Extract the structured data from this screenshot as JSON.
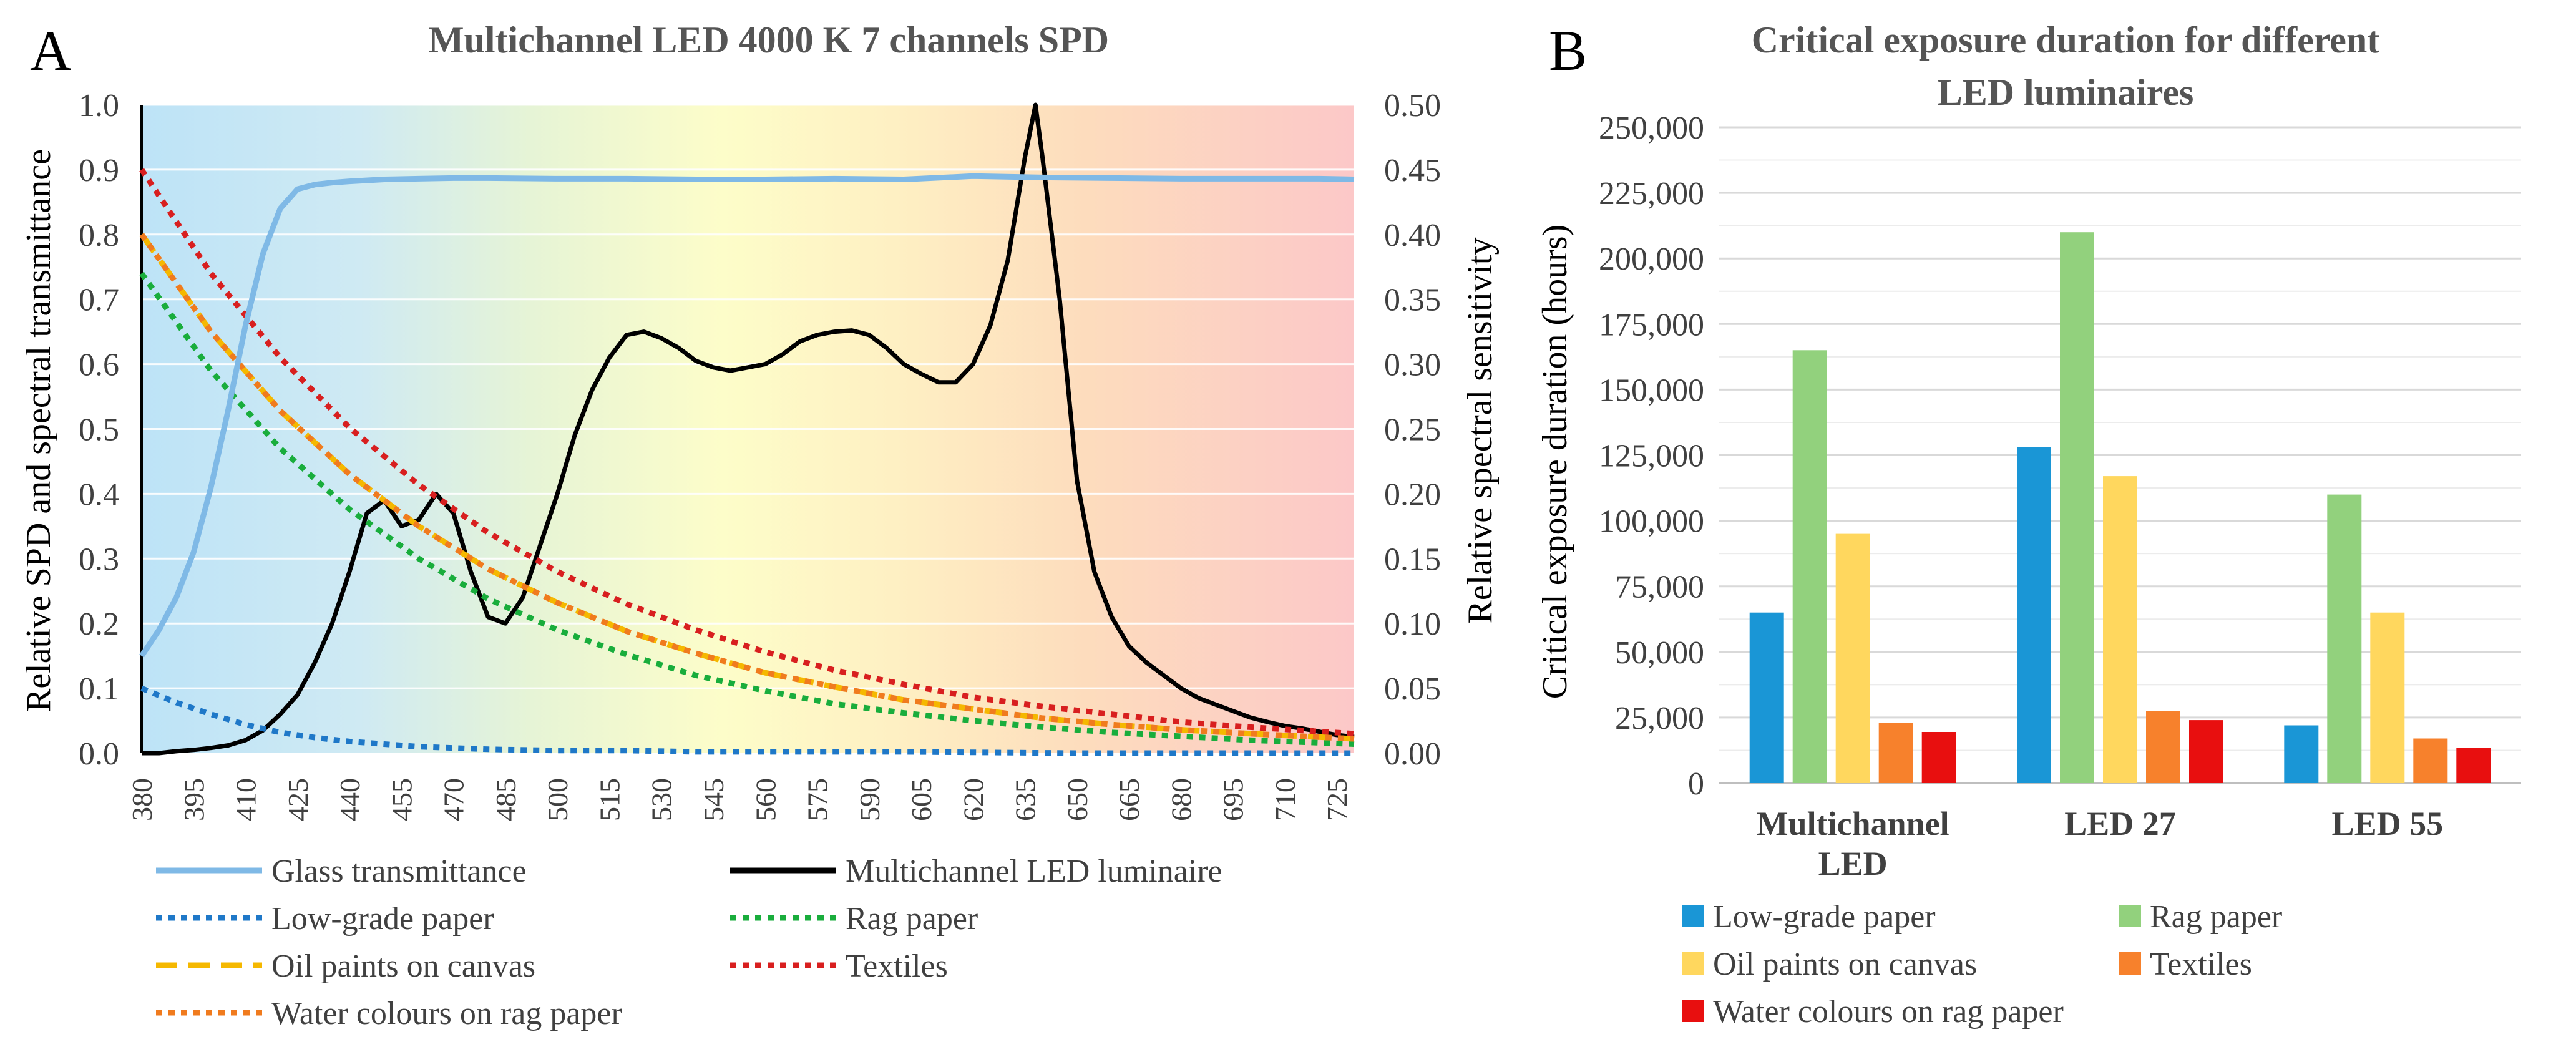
{
  "panels": {
    "a_letter": "A",
    "b_letter": "B"
  },
  "colors": {
    "glass": "#7fb9e6",
    "led": "#000000",
    "low": "#1f78c8",
    "rag": "#19ad3c",
    "oil": "#f5b800",
    "textiles": "#d81f1f",
    "water": "#f07b1e",
    "bar_low": "#1a96d6",
    "bar_rag": "#92d17d",
    "bar_oil": "#ffd75e",
    "bar_textiles": "#f7812c",
    "bar_water": "#e80f0f",
    "title": "#555555",
    "grid": "#d9d9d9"
  },
  "chart_data": [
    {
      "type": "line",
      "title": "Multichannel LED 4000 K 7 channels SPD",
      "xlabel": "",
      "ylabel": "Relative SPD and spectral transmittance",
      "y2label": "Relative spectral sensitivity",
      "xlim": [
        380,
        730
      ],
      "ylim": [
        0,
        1.0
      ],
      "y2lim": [
        0,
        0.5
      ],
      "x_ticks": [
        "380",
        "395",
        "410",
        "425",
        "440",
        "455",
        "470",
        "485",
        "500",
        "515",
        "530",
        "545",
        "560",
        "575",
        "590",
        "605",
        "620",
        "635",
        "650",
        "665",
        "680",
        "695",
        "710",
        "725"
      ],
      "y_ticks": [
        "0.0",
        "0.1",
        "0.2",
        "0.3",
        "0.4",
        "0.5",
        "0.6",
        "0.7",
        "0.8",
        "0.9",
        "1.0"
      ],
      "y2_ticks": [
        "0.00",
        "0.05",
        "0.10",
        "0.15",
        "0.20",
        "0.25",
        "0.30",
        "0.35",
        "0.40",
        "0.45",
        "0.50"
      ],
      "background_gradient": "visible spectrum (blue to red)",
      "series": [
        {
          "name": "Glass transmittance",
          "key": "glass",
          "axis": "left",
          "style": "solid",
          "x": [
            380,
            385,
            390,
            395,
            400,
            405,
            410,
            415,
            420,
            425,
            430,
            435,
            440,
            450,
            460,
            470,
            480,
            500,
            520,
            540,
            560,
            580,
            600,
            620,
            640,
            660,
            680,
            700,
            720,
            730
          ],
          "y": [
            0.15,
            0.19,
            0.24,
            0.31,
            0.41,
            0.53,
            0.66,
            0.77,
            0.84,
            0.87,
            0.877,
            0.88,
            0.882,
            0.885,
            0.886,
            0.887,
            0.887,
            0.886,
            0.886,
            0.885,
            0.885,
            0.886,
            0.885,
            0.89,
            0.888,
            0.887,
            0.886,
            0.886,
            0.886,
            0.885
          ]
        },
        {
          "name": "Multichannel LED luminaire",
          "key": "led",
          "axis": "left",
          "style": "solid",
          "x": [
            380,
            385,
            390,
            395,
            400,
            405,
            410,
            415,
            420,
            425,
            430,
            435,
            440,
            445,
            450,
            455,
            460,
            465,
            470,
            475,
            480,
            485,
            490,
            495,
            500,
            505,
            510,
            515,
            520,
            525,
            530,
            535,
            540,
            545,
            550,
            555,
            560,
            565,
            570,
            575,
            580,
            585,
            590,
            595,
            600,
            605,
            610,
            615,
            620,
            625,
            630,
            635,
            638,
            640,
            645,
            650,
            655,
            660,
            665,
            670,
            675,
            680,
            685,
            690,
            695,
            700,
            705,
            710,
            715,
            720,
            725,
            730
          ],
          "y": [
            0.0,
            0.0,
            0.003,
            0.005,
            0.008,
            0.012,
            0.02,
            0.035,
            0.06,
            0.09,
            0.14,
            0.2,
            0.28,
            0.37,
            0.39,
            0.35,
            0.36,
            0.4,
            0.37,
            0.28,
            0.21,
            0.2,
            0.24,
            0.32,
            0.4,
            0.49,
            0.56,
            0.61,
            0.645,
            0.65,
            0.64,
            0.625,
            0.605,
            0.595,
            0.59,
            0.595,
            0.6,
            0.615,
            0.635,
            0.645,
            0.65,
            0.652,
            0.645,
            0.625,
            0.6,
            0.585,
            0.572,
            0.572,
            0.6,
            0.66,
            0.76,
            0.92,
            1.0,
            0.92,
            0.7,
            0.42,
            0.28,
            0.21,
            0.165,
            0.14,
            0.12,
            0.1,
            0.085,
            0.075,
            0.065,
            0.055,
            0.048,
            0.042,
            0.038,
            0.033,
            0.028,
            0.025
          ]
        },
        {
          "name": "Low-grade paper",
          "key": "low",
          "axis": "right",
          "style": "dotted",
          "x": [
            380,
            390,
            400,
            410,
            420,
            430,
            440,
            450,
            460,
            470,
            480,
            500,
            520,
            540,
            560,
            600,
            650,
            700,
            730
          ],
          "y": [
            0.05,
            0.039,
            0.03,
            0.022,
            0.016,
            0.012,
            0.009,
            0.007,
            0.005,
            0.004,
            0.003,
            0.002,
            0.002,
            0.001,
            0.001,
            0.001,
            0.0,
            0.0,
            0.0
          ]
        },
        {
          "name": "Rag paper",
          "key": "rag",
          "axis": "right",
          "style": "dotted",
          "x": [
            380,
            400,
            420,
            440,
            460,
            480,
            500,
            520,
            540,
            560,
            580,
            600,
            620,
            640,
            660,
            680,
            700,
            730
          ],
          "y": [
            0.37,
            0.295,
            0.235,
            0.188,
            0.15,
            0.119,
            0.095,
            0.076,
            0.06,
            0.048,
            0.038,
            0.031,
            0.025,
            0.02,
            0.016,
            0.013,
            0.01,
            0.007
          ]
        },
        {
          "name": "Oil paints on canvas",
          "key": "oil",
          "axis": "right",
          "style": "dashed",
          "x": [
            380,
            400,
            420,
            440,
            460,
            480,
            500,
            520,
            540,
            560,
            580,
            600,
            620,
            640,
            660,
            680,
            700,
            730
          ],
          "y": [
            0.4,
            0.325,
            0.264,
            0.215,
            0.175,
            0.142,
            0.116,
            0.094,
            0.077,
            0.062,
            0.051,
            0.041,
            0.034,
            0.027,
            0.022,
            0.018,
            0.015,
            0.011
          ]
        },
        {
          "name": "Textiles",
          "key": "textiles",
          "axis": "right",
          "style": "dotted",
          "x": [
            380,
            400,
            420,
            440,
            460,
            480,
            500,
            520,
            540,
            560,
            580,
            600,
            620,
            640,
            660,
            680,
            700,
            730
          ],
          "y": [
            0.45,
            0.37,
            0.305,
            0.251,
            0.207,
            0.17,
            0.14,
            0.115,
            0.095,
            0.078,
            0.064,
            0.053,
            0.043,
            0.036,
            0.03,
            0.024,
            0.02,
            0.015
          ]
        },
        {
          "name": "Water colours on rag paper",
          "key": "water",
          "axis": "right",
          "style": "dotted",
          "x": [
            380,
            400,
            420,
            440,
            460,
            480,
            500,
            520,
            540,
            560,
            580,
            600,
            620,
            640,
            660,
            680,
            700,
            730
          ],
          "y": [
            0.4,
            0.325,
            0.264,
            0.215,
            0.175,
            0.142,
            0.116,
            0.094,
            0.077,
            0.062,
            0.051,
            0.041,
            0.034,
            0.027,
            0.022,
            0.018,
            0.015,
            0.011
          ]
        }
      ],
      "legend": [
        {
          "label": "Glass transmittance",
          "key": "glass",
          "style": "solid"
        },
        {
          "label": "Multichannel LED luminaire",
          "key": "led",
          "style": "solid"
        },
        {
          "label": "Low-grade paper",
          "key": "low",
          "style": "dotted"
        },
        {
          "label": "Rag paper",
          "key": "rag",
          "style": "dotted"
        },
        {
          "label": "Oil paints on canvas",
          "key": "oil",
          "style": "dashed"
        },
        {
          "label": "Textiles",
          "key": "textiles",
          "style": "dotted"
        },
        {
          "label": "Water colours on rag paper",
          "key": "water",
          "style": "dotted"
        }
      ],
      "legend_position": "bottom"
    },
    {
      "type": "bar",
      "title_lines": [
        "Critical exposure duration for different",
        "LED luminaires"
      ],
      "xlabel": "",
      "ylabel": "Critical exposure duration (hours)",
      "ylim": [
        0,
        250000
      ],
      "y_ticks": [
        "0",
        "25,000",
        "50,000",
        "75,000",
        "100,000",
        "125,000",
        "150,000",
        "175,000",
        "200,000",
        "225,000",
        "250,000"
      ],
      "categories": [
        [
          "Multichannel",
          "LED"
        ],
        [
          "LED 27"
        ],
        [
          "LED 55"
        ]
      ],
      "series": [
        {
          "name": "Low-grade paper",
          "key": "bar_low",
          "values": [
            65000,
            128000,
            22000
          ]
        },
        {
          "name": "Rag paper",
          "key": "bar_rag",
          "values": [
            165000,
            210000,
            110000
          ]
        },
        {
          "name": "Oil paints on canvas",
          "key": "bar_oil",
          "values": [
            95000,
            117000,
            65000
          ]
        },
        {
          "name": "Textiles",
          "key": "bar_textiles",
          "values": [
            23000,
            27500,
            17000
          ]
        },
        {
          "name": "Water colours on rag paper",
          "key": "bar_water",
          "values": [
            19500,
            24000,
            13500
          ]
        }
      ],
      "legend_position": "bottom",
      "grid": true
    }
  ]
}
